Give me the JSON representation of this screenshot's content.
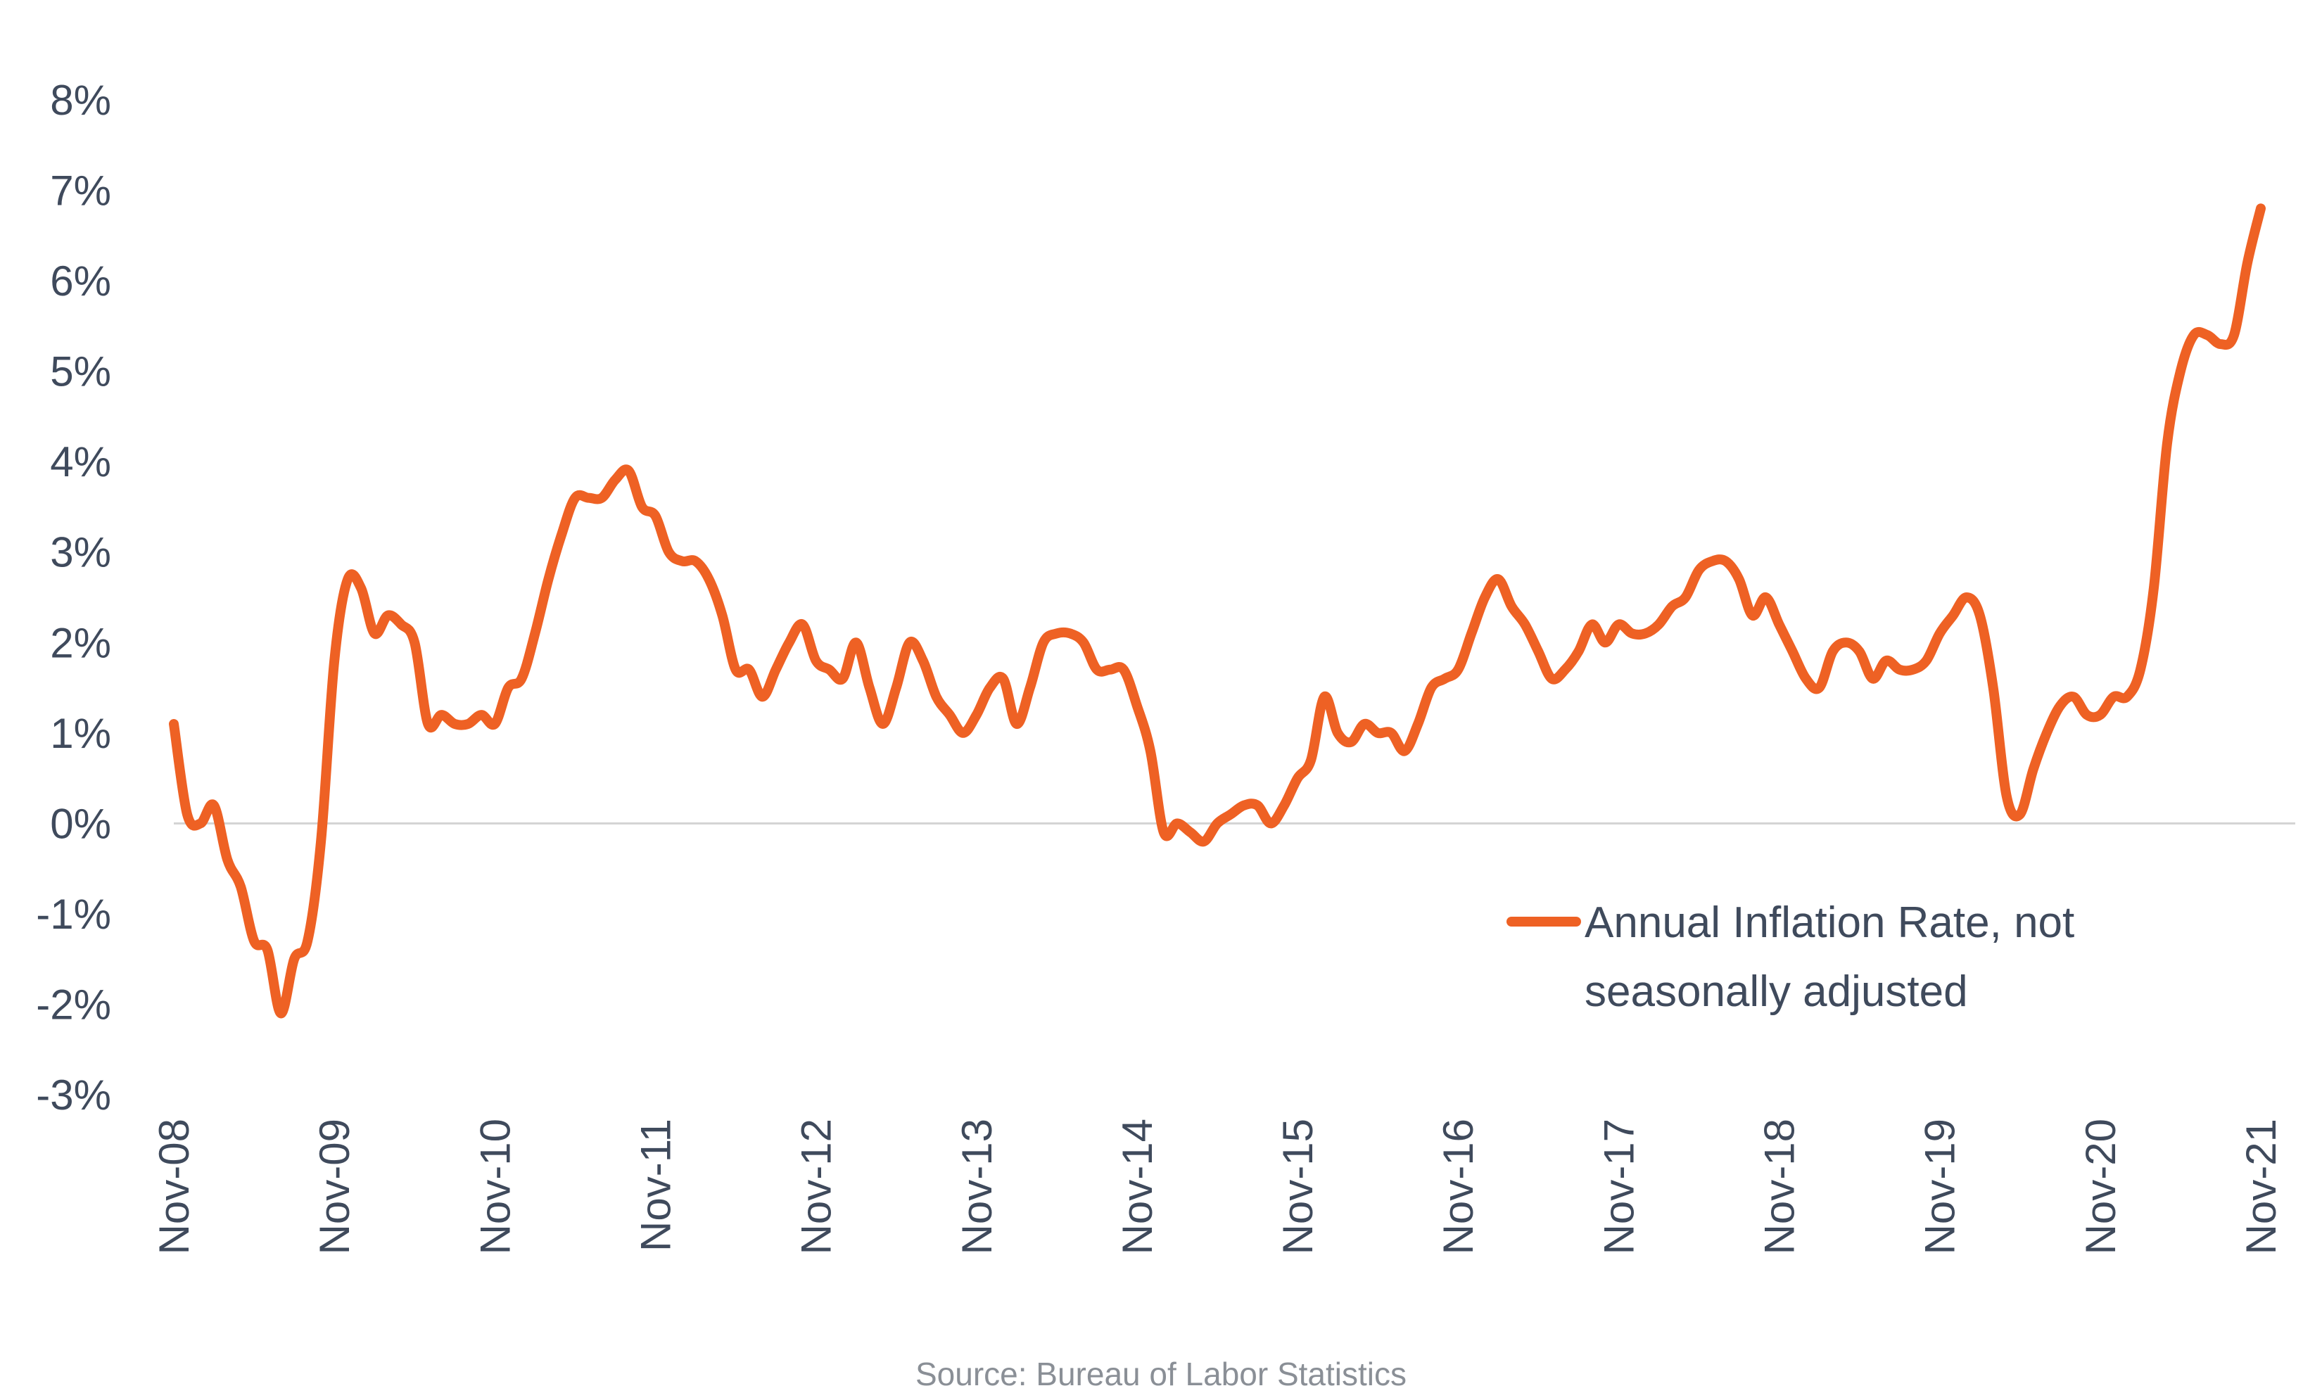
{
  "chart_data": {
    "type": "line",
    "title": "",
    "xlabel": "",
    "ylabel": "",
    "ylim": [
      -3,
      8
    ],
    "y_ticks": [
      "8%",
      "7%",
      "6%",
      "5%",
      "4%",
      "3%",
      "2%",
      "1%",
      "0%",
      "-1%",
      "-2%",
      "-3%"
    ],
    "y_tick_values": [
      8,
      7,
      6,
      5,
      4,
      3,
      2,
      1,
      0,
      -1,
      -2,
      -3
    ],
    "x_ticks": [
      "Nov-08",
      "Nov-09",
      "Nov-10",
      "Nov-11",
      "Nov-12",
      "Nov-13",
      "Nov-14",
      "Nov-15",
      "Nov-16",
      "Nov-17",
      "Nov-18",
      "Nov-19",
      "Nov-20",
      "Nov-21"
    ],
    "grid": false,
    "legend_position": "bottom-right",
    "series": [
      {
        "name": "Annual Inflation Rate, not seasonally adjusted",
        "color": "#EE6124",
        "values": [
          1.1,
          0.1,
          0.0,
          0.2,
          -0.4,
          -0.7,
          -1.3,
          -1.4,
          -2.1,
          -1.5,
          -1.3,
          -0.2,
          1.8,
          2.7,
          2.6,
          2.1,
          2.3,
          2.2,
          2.0,
          1.1,
          1.2,
          1.1,
          1.1,
          1.2,
          1.1,
          1.5,
          1.6,
          2.1,
          2.7,
          3.2,
          3.6,
          3.6,
          3.6,
          3.8,
          3.9,
          3.5,
          3.4,
          3.0,
          2.9,
          2.9,
          2.7,
          2.3,
          1.7,
          1.7,
          1.4,
          1.7,
          2.0,
          2.2,
          1.8,
          1.7,
          1.6,
          2.0,
          1.5,
          1.1,
          1.5,
          2.0,
          1.8,
          1.4,
          1.2,
          1.0,
          1.2,
          1.5,
          1.6,
          1.1,
          1.5,
          2.0,
          2.1,
          2.1,
          2.0,
          1.7,
          1.7,
          1.7,
          1.3,
          0.8,
          -0.1,
          0.0,
          -0.1,
          -0.2,
          0.0,
          0.1,
          0.2,
          0.2,
          0.0,
          0.2,
          0.5,
          0.7,
          1.4,
          1.0,
          0.9,
          1.1,
          1.0,
          1.0,
          0.8,
          1.1,
          1.5,
          1.6,
          1.7,
          2.1,
          2.5,
          2.7,
          2.4,
          2.2,
          1.9,
          1.6,
          1.7,
          1.9,
          2.2,
          2.0,
          2.2,
          2.1,
          2.1,
          2.2,
          2.4,
          2.5,
          2.8,
          2.9,
          2.9,
          2.7,
          2.3,
          2.5,
          2.2,
          1.9,
          1.6,
          1.5,
          1.9,
          2.0,
          1.9,
          1.6,
          1.8,
          1.7,
          1.7,
          1.8,
          2.1,
          2.3,
          2.5,
          2.3,
          1.5,
          0.3,
          0.1,
          0.6,
          1.0,
          1.3,
          1.4,
          1.2,
          1.2,
          1.4,
          1.4,
          1.7,
          2.6,
          4.2,
          5.0,
          5.4,
          5.4,
          5.3,
          5.4,
          6.2,
          6.8
        ]
      }
    ]
  },
  "source": "Source: Bureau of Labor Statistics"
}
